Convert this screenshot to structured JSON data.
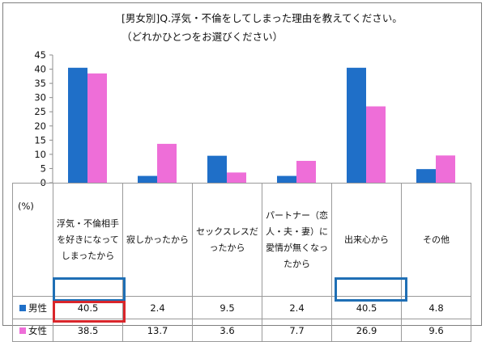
{
  "title": "[男女別]Q.浮気・不倫をしてしまった理由を教えてください。",
  "subtitle": "（どれかひとつをお選びください）",
  "colors": {
    "male": "#1f6fc8",
    "female": "#ee6ed8",
    "highlight_male": "#1f6fb5",
    "highlight_female": "#d9262b"
  },
  "chart_data": {
    "type": "bar",
    "categories": [
      "浮気・不倫相手を好きになってしまったから",
      "寂しかったから",
      "セックスレスだったから",
      "パートナー（恋人・夫・妻）に愛情が無くなったから",
      "出来心から",
      "その他"
    ],
    "series": [
      {
        "name": "男性",
        "values": [
          40.5,
          2.4,
          9.5,
          2.4,
          40.5,
          4.8
        ]
      },
      {
        "name": "女性",
        "values": [
          38.5,
          13.7,
          3.6,
          7.7,
          26.9,
          9.6
        ]
      }
    ],
    "yticks": [
      0,
      5,
      10,
      15,
      20,
      25,
      30,
      35,
      40,
      45
    ],
    "ylim": [
      0,
      45
    ],
    "unit_label": "(%)",
    "grid": false,
    "legend": "table-row-headers"
  },
  "table": {
    "values_male": [
      "40.5",
      "2.4",
      "9.5",
      "2.4",
      "40.5",
      "4.8"
    ],
    "values_female": [
      "38.5",
      "13.7",
      "3.6",
      "7.7",
      "26.9",
      "9.6"
    ]
  }
}
